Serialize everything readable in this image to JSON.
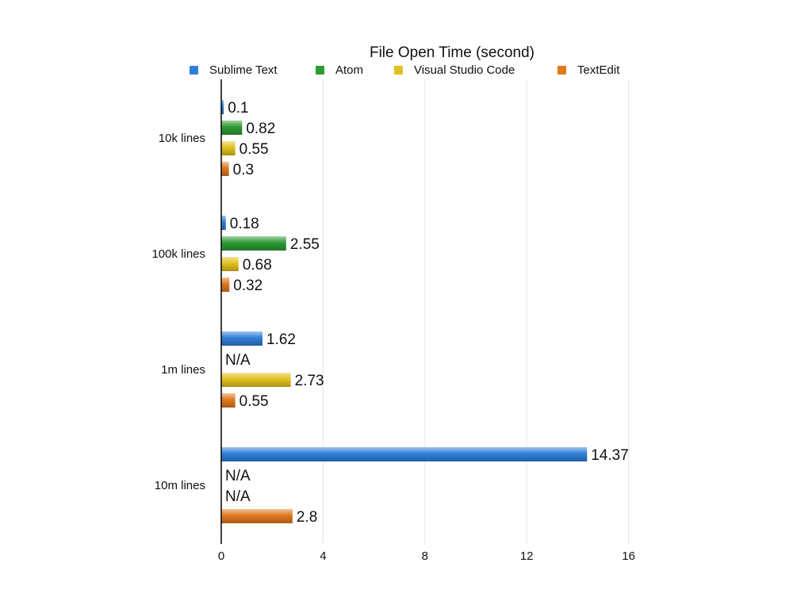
{
  "chart_data": {
    "type": "bar",
    "orientation": "horizontal",
    "title": "File Open Time (second)",
    "categories": [
      "10k lines",
      "100k lines",
      "1m lines",
      "10m lines"
    ],
    "series": [
      {
        "name": "Sublime Text",
        "color": "#2f7fd8",
        "values": [
          0.1,
          0.18,
          1.62,
          14.37
        ]
      },
      {
        "name": "Atom",
        "color": "#2e9a35",
        "values": [
          0.82,
          2.55,
          null,
          null
        ]
      },
      {
        "name": "Visual Studio Code",
        "color": "#e2c11f",
        "values": [
          0.55,
          0.68,
          2.73,
          null
        ]
      },
      {
        "name": "TextEdit",
        "color": "#e0781d",
        "values": [
          0.3,
          0.32,
          0.55,
          2.8
        ]
      }
    ],
    "value_labels": [
      [
        "0.1",
        "0.82",
        "0.55",
        "0.3"
      ],
      [
        "0.18",
        "2.55",
        "0.68",
        "0.32"
      ],
      [
        "1.62",
        "N/A",
        "2.73",
        "0.55"
      ],
      [
        "14.37",
        "N/A",
        "N/A",
        "2.8"
      ]
    ],
    "xlim": [
      0,
      16
    ],
    "xticks": [
      0,
      4,
      8,
      12,
      16
    ],
    "grid": true,
    "legend_position": "top"
  }
}
